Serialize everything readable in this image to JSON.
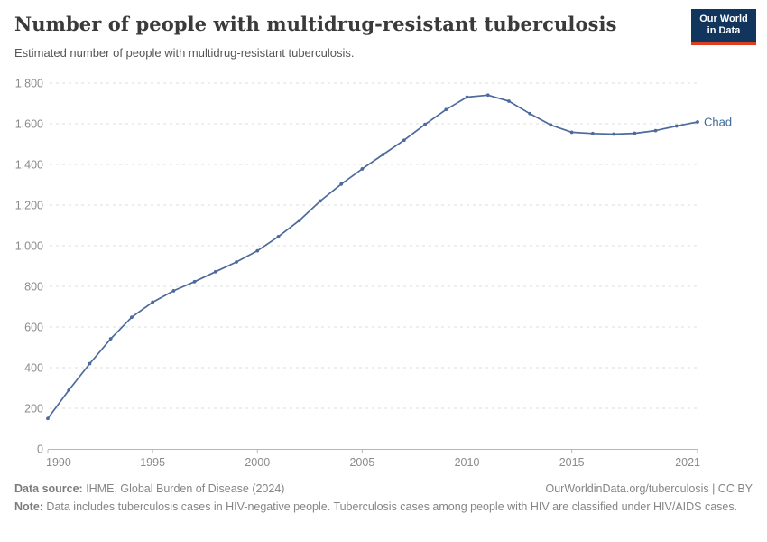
{
  "header": {
    "title": "Number of people with multidrug-resistant tuberculosis",
    "subtitle": "Estimated number of people with multidrug-resistant tuberculosis.",
    "logo_line1": "Our World",
    "logo_line2": "in Data"
  },
  "chart_data": {
    "type": "line",
    "title": "Number of people with multidrug-resistant tuberculosis",
    "xlabel": "",
    "ylabel": "",
    "xlim": [
      1990,
      2021
    ],
    "ylim": [
      0,
      1800
    ],
    "grid": "horizontal-dashed",
    "legend_position": "end-of-line-label",
    "x_ticks": [
      1990,
      1995,
      2000,
      2005,
      2010,
      2015,
      2021
    ],
    "y_ticks": [
      0,
      200,
      400,
      600,
      800,
      1000,
      1200,
      1400,
      1600,
      1800
    ],
    "x": [
      1990,
      1991,
      1992,
      1993,
      1994,
      1995,
      1996,
      1997,
      1998,
      1999,
      2000,
      2001,
      2002,
      2003,
      2004,
      2005,
      2006,
      2007,
      2008,
      2009,
      2010,
      2011,
      2012,
      2013,
      2014,
      2015,
      2016,
      2017,
      2018,
      2019,
      2020,
      2021
    ],
    "series": [
      {
        "name": "Chad",
        "end_label": "Chad",
        "values": [
          150,
          289,
          420,
          542,
          648,
          722,
          778,
          823,
          872,
          920,
          975,
          1045,
          1124,
          1220,
          1303,
          1378,
          1449,
          1519,
          1597,
          1670,
          1731,
          1741,
          1711,
          1650,
          1594,
          1558,
          1552,
          1549,
          1553,
          1566,
          1589,
          1609
        ]
      }
    ]
  },
  "footer": {
    "source_label": "Data source:",
    "source_text": " IHME, Global Burden of Disease (2024)",
    "link_text": "OurWorldinData.org/tuberculosis | CC BY",
    "note_label": "Note:",
    "note_text": " Data includes tuberculosis cases in HIV-negative people. Tuberculosis cases among people with HIV are classified under HIV/AIDS cases."
  },
  "colors": {
    "line": "#4c6a9c",
    "end_label": "#3d6a9e",
    "grid": "#dedede",
    "axis": "#b7b7b7",
    "tick_text": "#8b8b8b",
    "logo_bg": "#12355e",
    "logo_accent": "#dc3e22"
  }
}
